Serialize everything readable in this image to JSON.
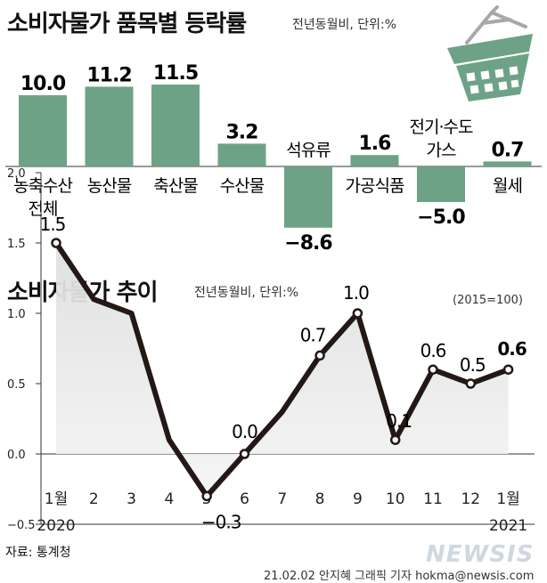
{
  "top": {
    "title": "소비자물가 품목별 등락률",
    "unit": "전년동월비, 단위:%"
  },
  "bottom": {
    "title": "소비자물가 추이",
    "unit": "전년동월비, 단위:%",
    "base": "(2015=100)"
  },
  "source": "자료: 통계청",
  "credit": "21.02.02 안지혜 그래픽 기자 hokma@newsis.com",
  "watermark": "NEWSIS",
  "colors": {
    "bar": "#6ea286",
    "line": "#231815",
    "area": "#dedfe0",
    "axis": "#333333"
  },
  "icon": "shopping-basket-icon",
  "chart_data": [
    {
      "type": "bar",
      "title": "소비자물가 품목별 등락률",
      "categories": [
        [
          "농축수산",
          "전체"
        ],
        [
          "농산물"
        ],
        [
          "축산물"
        ],
        [
          "수산물"
        ],
        [
          "석유류"
        ],
        [
          "가공식품"
        ],
        [
          "전기·수도",
          "가스"
        ],
        [
          "월세"
        ]
      ],
      "values": [
        10.0,
        11.2,
        11.5,
        3.2,
        -8.6,
        1.6,
        -5.0,
        0.7
      ],
      "value_labels": [
        "10.0",
        "11.2",
        "11.5",
        "3.2",
        "−8.6",
        "1.6",
        "−5.0",
        "0.7"
      ],
      "ylim": [
        -8.6,
        11.5
      ]
    },
    {
      "type": "line",
      "title": "소비자물가 추이",
      "x": [
        "1월",
        "2",
        "3",
        "4",
        "5",
        "6",
        "7",
        "8",
        "9",
        "10",
        "11",
        "12",
        "1월"
      ],
      "year_labels": [
        "2020",
        "",
        "",
        "",
        "",
        "",
        "",
        "",
        "",
        "",
        "",
        "",
        "2021"
      ],
      "values": [
        1.5,
        1.1,
        1.0,
        0.1,
        -0.3,
        0.0,
        0.3,
        0.7,
        1.0,
        0.1,
        0.6,
        0.5,
        0.6
      ],
      "point_labels": [
        "1.5",
        "",
        "",
        "",
        "−0.3",
        "0.0",
        "",
        "0.7",
        "1.0",
        "0.1",
        "0.6",
        "0.5",
        "0.6"
      ],
      "yticks": [
        "2.0",
        "1.5",
        "1.0",
        "0.5",
        "0.0",
        "−0.5"
      ],
      "ytick_values": [
        2.0,
        1.5,
        1.0,
        0.5,
        0.0,
        -0.5
      ],
      "ylim": [
        -0.5,
        2.0
      ],
      "grid": false
    }
  ]
}
